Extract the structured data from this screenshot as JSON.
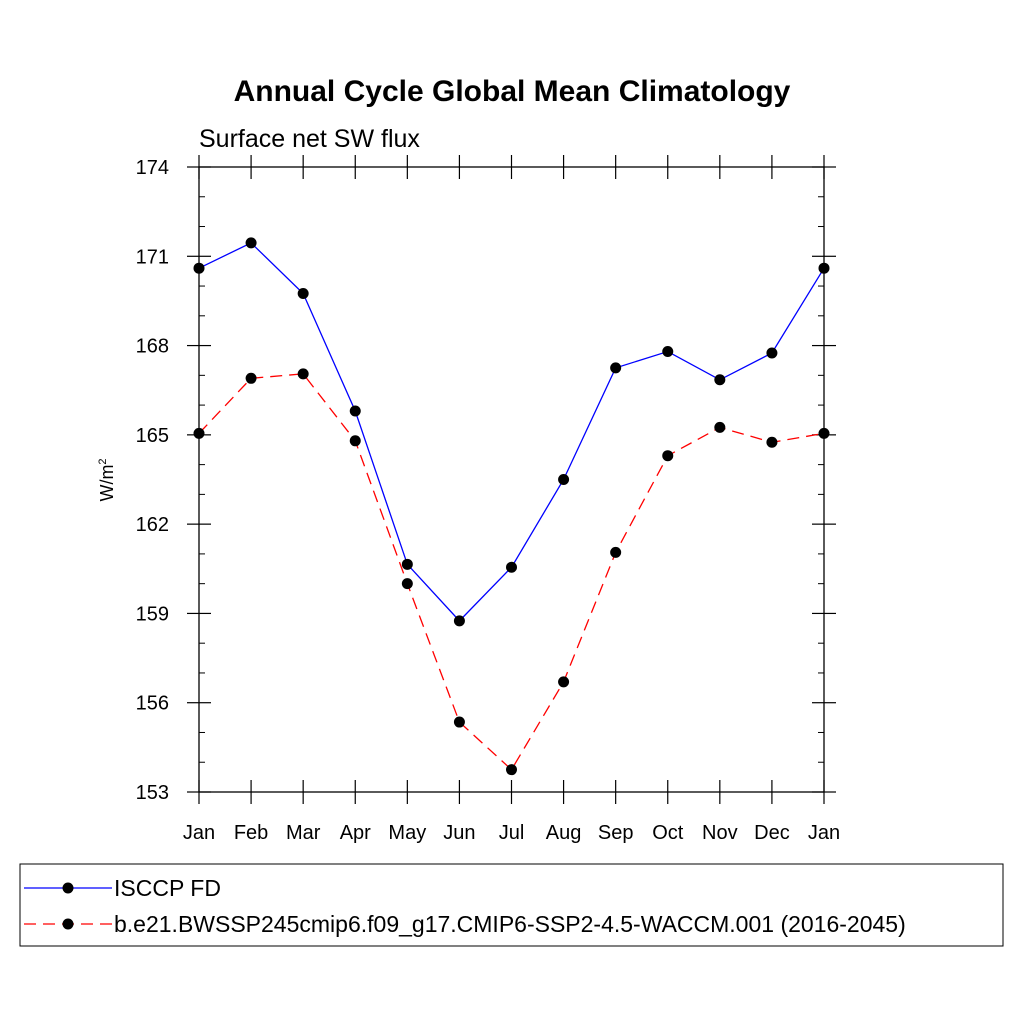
{
  "chart_data": {
    "type": "line",
    "title": "Annual Cycle Global Mean Climatology",
    "subtitle": "Surface net SW flux",
    "ylabel": "W/m",
    "ylabel_superscript": "2",
    "ylim": [
      153,
      174
    ],
    "yticks": [
      153,
      156,
      159,
      162,
      165,
      168,
      171,
      174
    ],
    "categories": [
      "Jan",
      "Feb",
      "Mar",
      "Apr",
      "May",
      "Jun",
      "Jul",
      "Aug",
      "Sep",
      "Oct",
      "Nov",
      "Dec",
      "Jan"
    ],
    "series": [
      {
        "name": "ISCCP FD",
        "color": "#0000ff",
        "dash": "solid",
        "values": [
          170.6,
          171.45,
          169.75,
          165.8,
          160.65,
          158.75,
          160.55,
          163.5,
          167.25,
          167.8,
          166.85,
          167.75,
          170.6
        ]
      },
      {
        "name": "b.e21.BWSSP245cmip6.f09_g17.CMIP6-SSP2-4.5-WACCM.001 (2016-2045)",
        "color": "#ff0000",
        "dash": "dashed",
        "values": [
          165.05,
          166.9,
          167.05,
          164.8,
          160.0,
          155.35,
          153.75,
          156.7,
          161.05,
          164.3,
          165.25,
          164.75,
          165.05
        ]
      }
    ],
    "grid": false,
    "legend_position": "bottom"
  }
}
